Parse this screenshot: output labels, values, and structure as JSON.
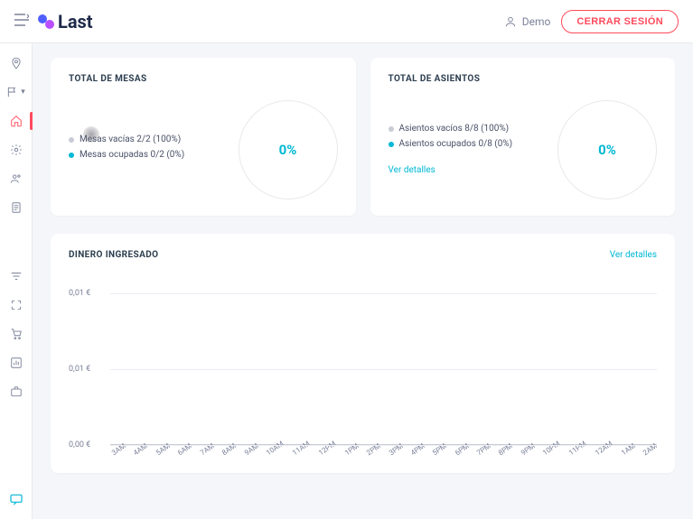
{
  "header": {
    "brand": "Last",
    "user_label": "Demo",
    "logout_label": "CERRAR SESIÓN"
  },
  "colors": {
    "accent_cyan": "#00b8d4",
    "accent_red": "#ff4b5c",
    "dot_empty": "#c9ccd6",
    "dot_occupied": "#00b8d4",
    "grid": "#eceef3",
    "text_muted": "#7b8299"
  },
  "cards": {
    "mesas": {
      "title": "TOTAL DE MESAS",
      "legend": [
        {
          "label": "Mesas vacías 2/2 (100%)",
          "color": "#c9ccd6"
        },
        {
          "label": "Mesas ocupadas 0/2 (0%)",
          "color": "#00b8d4"
        }
      ],
      "donut_value": "0%"
    },
    "asientos": {
      "title": "TOTAL DE ASIENTOS",
      "legend": [
        {
          "label": "Asientos vacíos 8/8 (100%)",
          "color": "#c9ccd6"
        },
        {
          "label": "Asientos ocupados 0/8 (0%)",
          "color": "#00b8d4"
        }
      ],
      "donut_value": "0%",
      "details_label": "Ver detalles"
    }
  },
  "money_chart": {
    "title": "DINERO INGRESADO",
    "details_label": "Ver detalles",
    "type": "line",
    "background_color": "#ffffff",
    "grid_color": "#eceef3",
    "axis_fontsize": 9,
    "y_ticks": [
      {
        "label": "0,01 €",
        "pos_pct": 10
      },
      {
        "label": "0,01 €",
        "pos_pct": 50
      },
      {
        "label": "0,00 €",
        "pos_pct": 90
      }
    ],
    "x_labels": [
      "3AM",
      "4AM",
      "5AM",
      "6AM",
      "7AM",
      "8AM",
      "9AM",
      "10AM",
      "11AM",
      "12PM",
      "1PM",
      "2PM",
      "3PM",
      "4PM",
      "5PM",
      "6PM",
      "7PM",
      "8PM",
      "9PM",
      "10PM",
      "11PM",
      "12AM",
      "1AM",
      "2AM"
    ]
  }
}
